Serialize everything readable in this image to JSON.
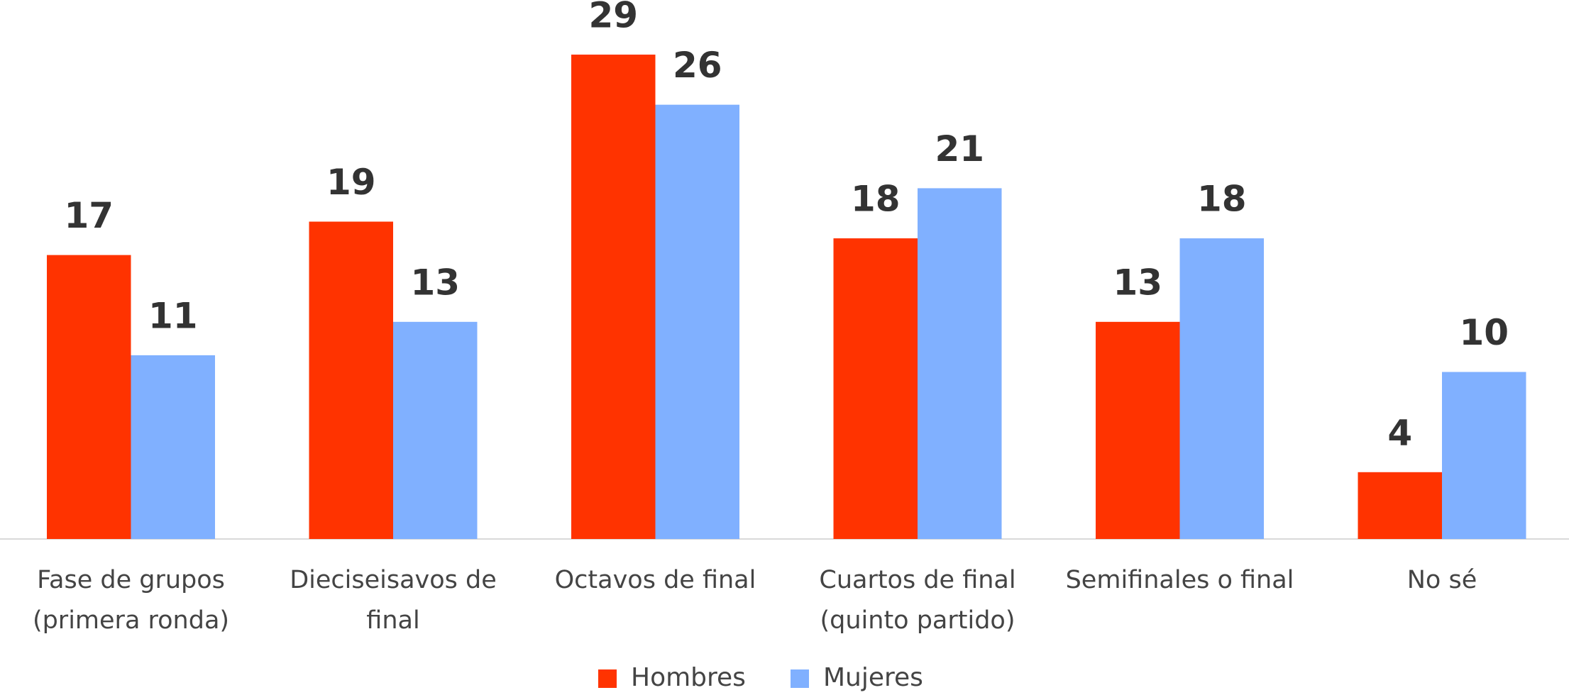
{
  "chart_data": {
    "type": "bar",
    "categories": [
      "Fase de grupos (primera ronda)",
      "Dieciseisavos de final",
      "Octavos de final",
      "Cuartos de final (quinto partido)",
      "Semifinales o final",
      "No sé"
    ],
    "series": [
      {
        "name": "Hombres",
        "color": "#ff3300",
        "values": [
          17,
          19,
          29,
          18,
          13,
          4
        ]
      },
      {
        "name": "Mujeres",
        "color": "#80b0ff",
        "values": [
          11,
          13,
          26,
          21,
          18,
          10
        ]
      }
    ],
    "legend": "bottom"
  }
}
